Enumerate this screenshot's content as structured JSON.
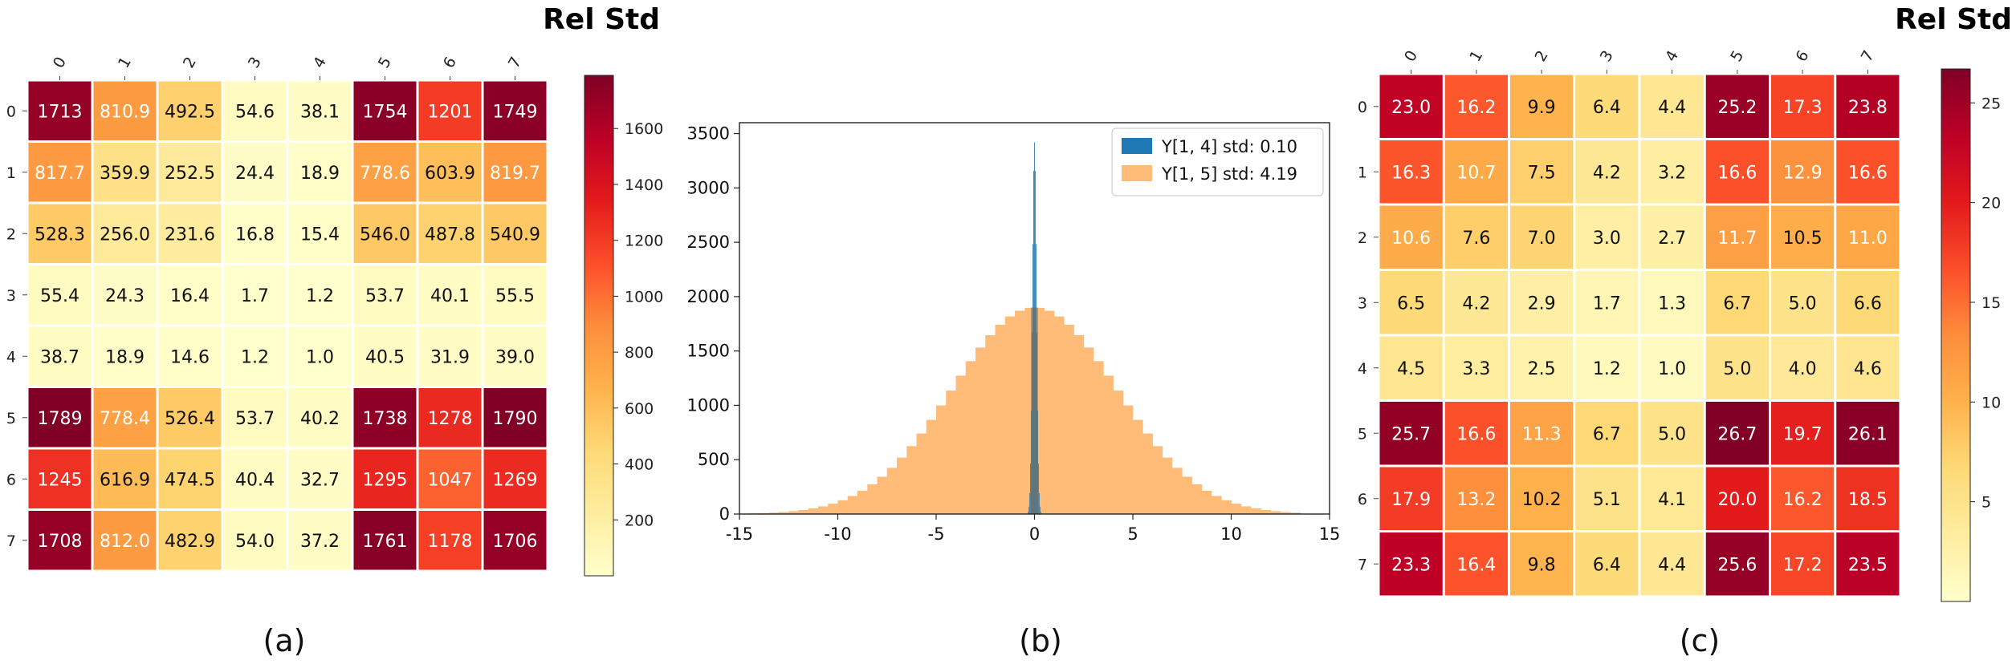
{
  "chart_data": [
    {
      "type": "heatmap",
      "panel_label": "(a)",
      "title": "Rel Std",
      "x_ticks": [
        "0",
        "1",
        "2",
        "3",
        "4",
        "5",
        "6",
        "7"
      ],
      "y_ticks": [
        "0",
        "1",
        "2",
        "3",
        "4",
        "5",
        "6",
        "7"
      ],
      "value_labels": [
        [
          "1713",
          "810.9",
          "492.5",
          "54.6",
          "38.1",
          "1754",
          "1201",
          "1749"
        ],
        [
          "817.7",
          "359.9",
          "252.5",
          "24.4",
          "18.9",
          "778.6",
          "603.9",
          "819.7"
        ],
        [
          "528.3",
          "256.0",
          "231.6",
          "16.8",
          "15.4",
          "546.0",
          "487.8",
          "540.9"
        ],
        [
          "55.4",
          "24.3",
          "16.4",
          "1.7",
          "1.2",
          "53.7",
          "40.1",
          "55.5"
        ],
        [
          "38.7",
          "18.9",
          "14.6",
          "1.2",
          "1.0",
          "40.5",
          "31.9",
          "39.0"
        ],
        [
          "1789",
          "778.4",
          "526.4",
          "53.7",
          "40.2",
          "1738",
          "1278",
          "1790"
        ],
        [
          "1245",
          "616.9",
          "474.5",
          "40.4",
          "32.7",
          "1295",
          "1047",
          "1269"
        ],
        [
          "1708",
          "812.0",
          "482.9",
          "54.0",
          "37.2",
          "1761",
          "1178",
          "1706"
        ]
      ],
      "colorbar": {
        "min": 0,
        "max": 1790,
        "ticks": [
          200,
          400,
          600,
          800,
          1000,
          1200,
          1400,
          1600
        ],
        "colormap": "YlOrRd"
      }
    },
    {
      "type": "histogram",
      "panel_label": "(b)",
      "xlim": [
        -15,
        15
      ],
      "ylim": [
        0,
        3600
      ],
      "x_ticks": [
        -15,
        -10,
        -5,
        0,
        5,
        10,
        15
      ],
      "y_ticks": [
        0,
        500,
        1000,
        1500,
        2000,
        2500,
        3000,
        3500
      ],
      "legend_position": "top-right",
      "series": [
        {
          "name": "Y[1, 4] std: 0.10",
          "color": "#1f77b4",
          "std": 0.1,
          "peak": 3420
        },
        {
          "name": "Y[1, 5] std: 4.19",
          "color": "#ffbb78",
          "std": 4.19,
          "peak": 1900
        }
      ]
    },
    {
      "type": "heatmap",
      "panel_label": "(c)",
      "title": "Rel Std",
      "x_ticks": [
        "0",
        "1",
        "2",
        "3",
        "4",
        "5",
        "6",
        "7"
      ],
      "y_ticks": [
        "0",
        "1",
        "2",
        "3",
        "4",
        "5",
        "6",
        "7"
      ],
      "value_labels": [
        [
          "23.0",
          "16.2",
          "9.9",
          "6.4",
          "4.4",
          "25.2",
          "17.3",
          "23.8"
        ],
        [
          "16.3",
          "10.7",
          "7.5",
          "4.2",
          "3.2",
          "16.6",
          "12.9",
          "16.6"
        ],
        [
          "10.6",
          "7.6",
          "7.0",
          "3.0",
          "2.7",
          "11.7",
          "10.5",
          "11.0"
        ],
        [
          "6.5",
          "4.2",
          "2.9",
          "1.7",
          "1.3",
          "6.7",
          "5.0",
          "6.6"
        ],
        [
          "4.5",
          "3.3",
          "2.5",
          "1.2",
          "1.0",
          "5.0",
          "4.0",
          "4.6"
        ],
        [
          "25.7",
          "16.6",
          "11.3",
          "6.7",
          "5.0",
          "26.7",
          "19.7",
          "26.1"
        ],
        [
          "17.9",
          "13.2",
          "10.2",
          "5.1",
          "4.1",
          "20.0",
          "16.2",
          "18.5"
        ],
        [
          "23.3",
          "16.4",
          "9.8",
          "6.4",
          "4.4",
          "25.6",
          "17.2",
          "23.5"
        ]
      ],
      "colorbar": {
        "min": 0,
        "max": 26.7,
        "ticks": [
          5,
          10,
          15,
          20,
          25
        ],
        "colormap": "YlOrRd"
      }
    }
  ]
}
